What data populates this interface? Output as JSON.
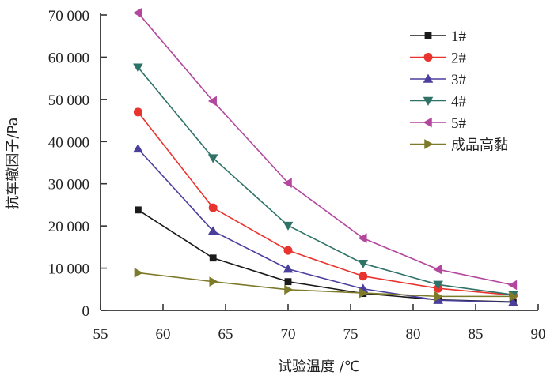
{
  "chart_data": {
    "type": "line",
    "title": "",
    "xlabel": "试验温度 /℃",
    "ylabel": "抗车辙因子/Pa",
    "xlim": [
      55,
      90
    ],
    "ylim": [
      0,
      70000
    ],
    "x_ticks": [
      55,
      60,
      65,
      70,
      75,
      80,
      85,
      90
    ],
    "y_ticks": [
      0,
      10000,
      20000,
      30000,
      40000,
      50000,
      60000,
      70000
    ],
    "x_tick_labels": [
      "55",
      "60",
      "65",
      "70",
      "75",
      "80",
      "85",
      "90"
    ],
    "y_tick_labels": [
      "0",
      "10 000",
      "20 000",
      "30 000",
      "40 000",
      "50 000",
      "60 000",
      "70 000"
    ],
    "grid": false,
    "legend_position": "top-right",
    "x": [
      58,
      64,
      70,
      76,
      82,
      88
    ],
    "series": [
      {
        "name": "1#",
        "color": "#1a1a1a",
        "marker": "square",
        "values": [
          23800,
          12400,
          6800,
          4000,
          2500,
          2000
        ]
      },
      {
        "name": "2#",
        "color": "#e8332e",
        "marker": "circle",
        "values": [
          47000,
          24300,
          14200,
          8100,
          5200,
          3600
        ]
      },
      {
        "name": "3#",
        "color": "#4b3f9e",
        "marker": "triangle-up",
        "values": [
          38300,
          18800,
          9800,
          5100,
          2400,
          1900
        ]
      },
      {
        "name": "4#",
        "color": "#2e7268",
        "marker": "triangle-down",
        "values": [
          57600,
          36100,
          20100,
          11100,
          6100,
          3700
        ]
      },
      {
        "name": "5#",
        "color": "#b2479d",
        "marker": "triangle-left",
        "values": [
          70500,
          49600,
          30200,
          17100,
          9700,
          6000
        ]
      },
      {
        "name": "成品高黏",
        "color": "#7d7a2a",
        "marker": "triangle-right",
        "values": [
          8900,
          6800,
          4900,
          4100,
          3300,
          3300
        ]
      }
    ]
  }
}
